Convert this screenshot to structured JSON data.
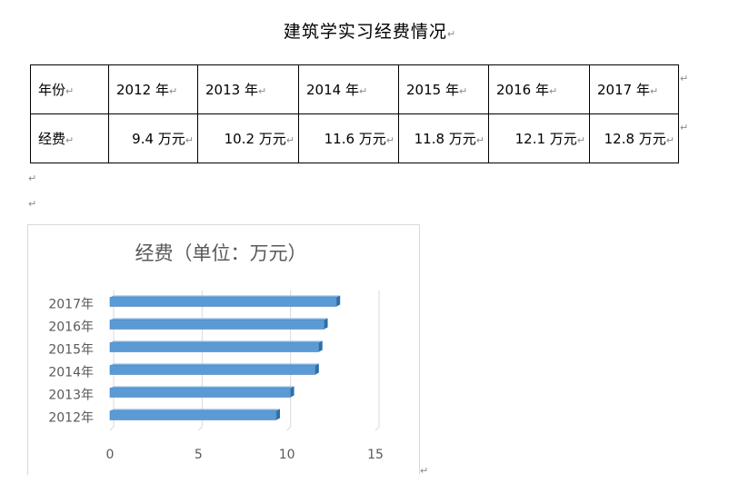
{
  "document": {
    "title": "建筑学实习经费情况",
    "paragraph_mark": "↵"
  },
  "table": {
    "header": [
      "年份",
      "2012 年",
      "2013 年",
      "2014 年",
      "2015 年",
      "2016 年",
      "2017 年"
    ],
    "row": [
      "经费",
      "9.4 万元",
      "10.2 万元",
      "11.6 万元",
      "11.8 万元",
      "12.1 万元",
      "12.8 万元"
    ]
  },
  "chart_data": {
    "type": "bar",
    "orientation": "horizontal",
    "style": "3d",
    "title": "经费（单位：万元）",
    "categories": [
      "2012年",
      "2013年",
      "2014年",
      "2015年",
      "2016年",
      "2017年"
    ],
    "values": [
      9.4,
      10.2,
      11.6,
      11.8,
      12.1,
      12.8
    ],
    "xlim": [
      0,
      15
    ],
    "x_ticks": [
      0,
      5,
      10,
      15
    ],
    "grid": true,
    "legend": "none",
    "bar_color": "#5b9bd5",
    "xlabel": "",
    "ylabel": ""
  }
}
